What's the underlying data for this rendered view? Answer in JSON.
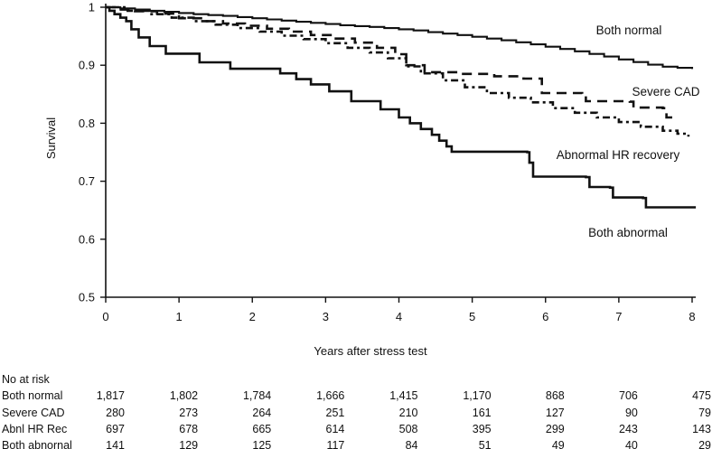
{
  "chart_data": {
    "type": "line",
    "subtype": "kaplan-meier-step",
    "title": "",
    "xlabel": "Years after stress test",
    "ylabel": "Survival",
    "xlim": [
      0,
      8
    ],
    "ylim": [
      0.5,
      1.0
    ],
    "grid": false,
    "legend_position": "inline-annotations",
    "x_ticks": [
      0,
      1,
      2,
      3,
      4,
      5,
      6,
      7,
      8
    ],
    "y_ticks": [
      1,
      0.9,
      0.8,
      0.7,
      0.6,
      0.5
    ],
    "y_tick_labels": [
      "1",
      "0.9",
      "0.8",
      "0.7",
      "0.6",
      "0.5"
    ],
    "line_color": "#111111",
    "series": [
      {
        "name": "Both normal",
        "line_style": "solid",
        "line_width": 2.1,
        "points": [
          [
            0,
            1.0
          ],
          [
            0.2,
            0.998
          ],
          [
            0.4,
            0.996
          ],
          [
            0.6,
            0.994
          ],
          [
            0.8,
            0.992
          ],
          [
            1.0,
            0.99
          ],
          [
            1.2,
            0.988
          ],
          [
            1.4,
            0.9865
          ],
          [
            1.6,
            0.985
          ],
          [
            1.8,
            0.983
          ],
          [
            2.0,
            0.981
          ],
          [
            2.2,
            0.979
          ],
          [
            2.4,
            0.977
          ],
          [
            2.6,
            0.975
          ],
          [
            2.8,
            0.973
          ],
          [
            3.0,
            0.971
          ],
          [
            3.2,
            0.969
          ],
          [
            3.4,
            0.9675
          ],
          [
            3.6,
            0.966
          ],
          [
            3.8,
            0.964
          ],
          [
            4.0,
            0.962
          ],
          [
            4.2,
            0.96
          ],
          [
            4.4,
            0.957
          ],
          [
            4.6,
            0.9545
          ],
          [
            4.8,
            0.952
          ],
          [
            5.0,
            0.949
          ],
          [
            5.2,
            0.946
          ],
          [
            5.4,
            0.943
          ],
          [
            5.6,
            0.9395
          ],
          [
            5.8,
            0.936
          ],
          [
            6.0,
            0.932
          ],
          [
            6.2,
            0.928
          ],
          [
            6.4,
            0.924
          ],
          [
            6.6,
            0.9195
          ],
          [
            6.8,
            0.915
          ],
          [
            7.0,
            0.91
          ],
          [
            7.2,
            0.9055
          ],
          [
            7.4,
            0.901
          ],
          [
            7.6,
            0.8975
          ],
          [
            7.8,
            0.8955
          ],
          [
            8.0,
            0.8935
          ]
        ]
      },
      {
        "name": "Severe CAD",
        "line_style": "long-dash",
        "line_width": 2.6,
        "points": [
          [
            0,
            1.0
          ],
          [
            0.15,
            0.996
          ],
          [
            0.4,
            0.993
          ],
          [
            0.7,
            0.989
          ],
          [
            1.0,
            0.981
          ],
          [
            1.3,
            0.976
          ],
          [
            1.6,
            0.972
          ],
          [
            1.9,
            0.968
          ],
          [
            2.2,
            0.963
          ],
          [
            2.5,
            0.958
          ],
          [
            2.8,
            0.952
          ],
          [
            3.1,
            0.946
          ],
          [
            3.4,
            0.939
          ],
          [
            3.7,
            0.93
          ],
          [
            3.95,
            0.919
          ],
          [
            4.1,
            0.9
          ],
          [
            4.35,
            0.888
          ],
          [
            4.8,
            0.885
          ],
          [
            5.3,
            0.881
          ],
          [
            5.7,
            0.877
          ],
          [
            5.95,
            0.852
          ],
          [
            6.5,
            0.851
          ],
          [
            6.55,
            0.838
          ],
          [
            7.15,
            0.837
          ],
          [
            7.2,
            0.827
          ],
          [
            7.6,
            0.826
          ],
          [
            7.65,
            0.81
          ],
          [
            7.8,
            0.81
          ]
        ]
      },
      {
        "name": "Abnormal HR recovery",
        "line_style": "dash-dot",
        "line_width": 2.6,
        "points": [
          [
            0,
            1.0
          ],
          [
            0.3,
            0.994
          ],
          [
            0.6,
            0.988
          ],
          [
            0.9,
            0.982
          ],
          [
            1.2,
            0.976
          ],
          [
            1.5,
            0.97
          ],
          [
            1.8,
            0.964
          ],
          [
            2.1,
            0.958
          ],
          [
            2.4,
            0.951
          ],
          [
            2.7,
            0.945
          ],
          [
            3.0,
            0.938
          ],
          [
            3.3,
            0.93
          ],
          [
            3.6,
            0.922
          ],
          [
            3.85,
            0.912
          ],
          [
            4.1,
            0.898
          ],
          [
            4.3,
            0.886
          ],
          [
            4.6,
            0.874
          ],
          [
            4.9,
            0.862
          ],
          [
            5.2,
            0.852
          ],
          [
            5.5,
            0.844
          ],
          [
            5.8,
            0.836
          ],
          [
            6.1,
            0.826
          ],
          [
            6.4,
            0.818
          ],
          [
            6.7,
            0.81
          ],
          [
            7.0,
            0.802
          ],
          [
            7.3,
            0.794
          ],
          [
            7.6,
            0.787
          ],
          [
            7.8,
            0.782
          ],
          [
            7.95,
            0.777
          ]
        ]
      },
      {
        "name": "Both abnormal",
        "line_style": "solid",
        "line_width": 2.6,
        "points": [
          [
            0,
            1.0
          ],
          [
            0.05,
            0.994
          ],
          [
            0.12,
            0.988
          ],
          [
            0.2,
            0.982
          ],
          [
            0.28,
            0.976
          ],
          [
            0.35,
            0.962
          ],
          [
            0.45,
            0.948
          ],
          [
            0.6,
            0.933
          ],
          [
            0.82,
            0.92
          ],
          [
            1.28,
            0.905
          ],
          [
            1.7,
            0.894
          ],
          [
            2.38,
            0.886
          ],
          [
            2.6,
            0.876
          ],
          [
            2.8,
            0.867
          ],
          [
            3.05,
            0.855
          ],
          [
            3.35,
            0.838
          ],
          [
            3.75,
            0.824
          ],
          [
            4.0,
            0.81
          ],
          [
            4.15,
            0.8
          ],
          [
            4.3,
            0.79
          ],
          [
            4.45,
            0.78
          ],
          [
            4.55,
            0.77
          ],
          [
            4.65,
            0.76
          ],
          [
            4.72,
            0.751
          ],
          [
            5.75,
            0.75
          ],
          [
            5.78,
            0.732
          ],
          [
            5.83,
            0.708
          ],
          [
            6.55,
            0.707
          ],
          [
            6.6,
            0.69
          ],
          [
            6.88,
            0.689
          ],
          [
            6.92,
            0.672
          ],
          [
            7.33,
            0.671
          ],
          [
            7.37,
            0.655
          ],
          [
            8.05,
            0.655
          ]
        ]
      }
    ]
  },
  "risk_table": {
    "header": "No at risk",
    "columns_years": [
      0,
      1,
      2,
      3,
      4,
      5,
      6,
      7,
      8
    ],
    "rows": [
      {
        "label": "Both normal",
        "values": [
          "1,817",
          "1,802",
          "1,784",
          "1,666",
          "1,415",
          "1,170",
          "868",
          "706",
          "475"
        ]
      },
      {
        "label": "Severe CAD",
        "values": [
          "280",
          "273",
          "264",
          "251",
          "210",
          "161",
          "127",
          "90",
          "79"
        ]
      },
      {
        "label": "Abnl HR Rec",
        "values": [
          "697",
          "678",
          "665",
          "614",
          "508",
          "395",
          "299",
          "243",
          "143"
        ]
      },
      {
        "label": "Both abnornal",
        "values": [
          "141",
          "129",
          "125",
          "117",
          "84",
          "51",
          "49",
          "40",
          "29"
        ]
      }
    ]
  }
}
